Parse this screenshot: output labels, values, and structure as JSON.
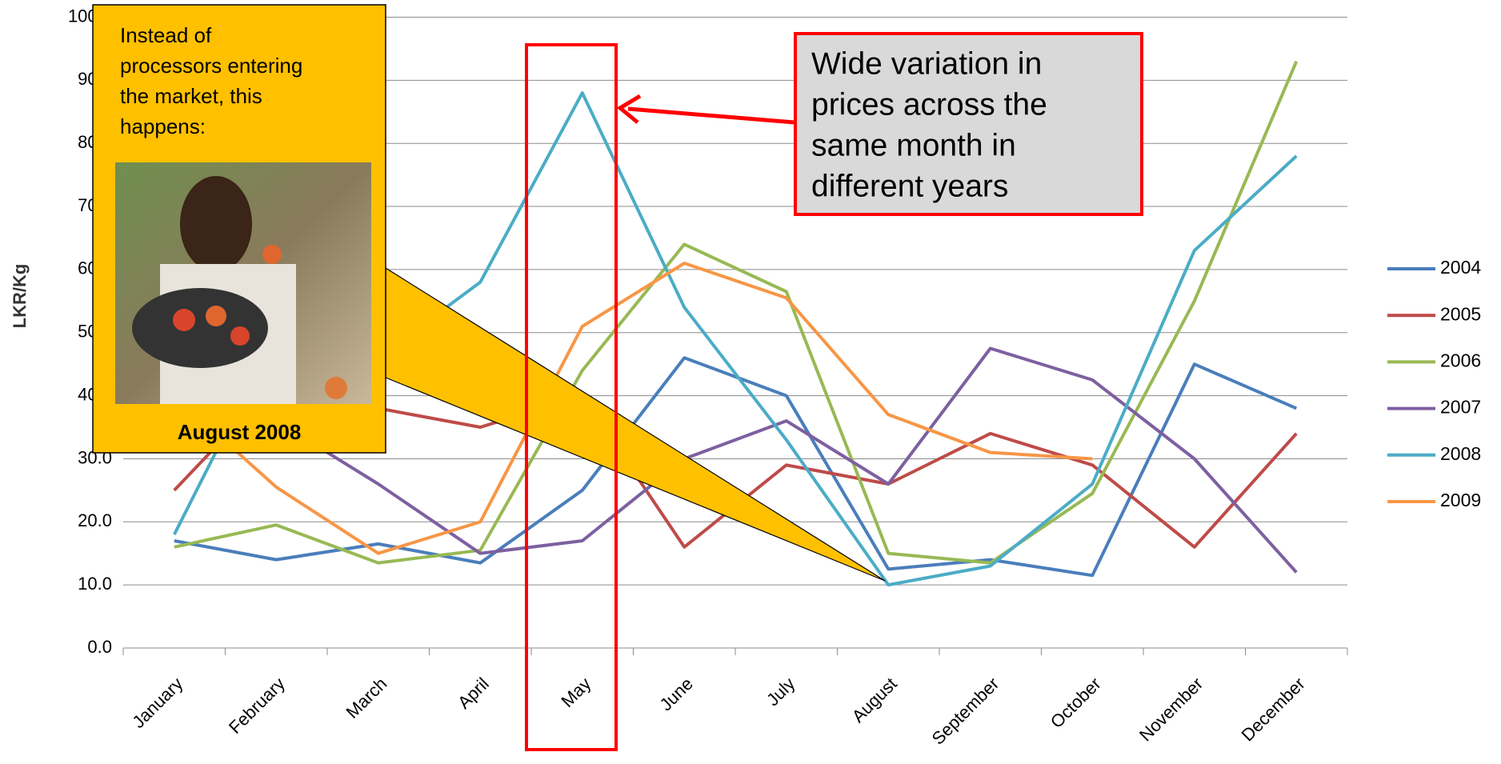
{
  "chart_data": {
    "type": "line",
    "y_label": "LKR/Kg",
    "categories": [
      "January",
      "February",
      "March",
      "April",
      "May",
      "June",
      "July",
      "August",
      "September",
      "October",
      "November",
      "December"
    ],
    "series": [
      {
        "name": "2004",
        "color": "#4a7ebb",
        "values": [
          17,
          14,
          16.5,
          13.5,
          25,
          46,
          40,
          12.5,
          14,
          11.5,
          45,
          38
        ]
      },
      {
        "name": "2005",
        "color": "#be4b48",
        "values": [
          25,
          42,
          38,
          35,
          40,
          16,
          29,
          26,
          34,
          29,
          16,
          34
        ]
      },
      {
        "name": "2006",
        "color": "#98b954",
        "values": [
          16,
          19.5,
          13.5,
          15.5,
          44,
          64,
          56.5,
          15,
          13.5,
          24.5,
          55,
          93
        ]
      },
      {
        "name": "2007",
        "color": "#7d60a0",
        "values": [
          40,
          36,
          26,
          15,
          17,
          30,
          36,
          26,
          47.5,
          42.5,
          30,
          12
        ]
      },
      {
        "name": "2008",
        "color": "#4bacc6",
        "values": [
          18,
          50,
          46,
          58,
          88,
          54,
          33,
          10,
          13,
          26,
          63,
          78
        ]
      },
      {
        "name": "2009",
        "color": "#f79646",
        "values": [
          40,
          25.5,
          15,
          20,
          51,
          61,
          55.5,
          37,
          31,
          30,
          null,
          null
        ]
      }
    ],
    "ylim": [
      0,
      100
    ],
    "yticks": [
      {
        "value": 0,
        "label": "0.0"
      },
      {
        "value": 10,
        "label": "10.0"
      },
      {
        "value": 20,
        "label": "20.0"
      },
      {
        "value": 30,
        "label": "30.0"
      },
      {
        "value": 40,
        "label": "40.0"
      },
      {
        "value": 50,
        "label": "50.0"
      },
      {
        "value": 60,
        "label": "60.0"
      },
      {
        "value": 70,
        "label": "70.0"
      },
      {
        "value": 80,
        "label": "80.0"
      },
      {
        "value": 90,
        "label": "90.0"
      },
      {
        "value": 100,
        "label": "100.0"
      }
    ],
    "grid": true,
    "legend": "right",
    "annotations": {
      "callout_lines": [
        "Instead  of",
        "processors entering",
        "the market, this",
        "happens:"
      ],
      "photo_caption": "August 2008",
      "note_lines": [
        "Wide variation in",
        "prices across the",
        "same month in",
        "different years"
      ]
    }
  }
}
